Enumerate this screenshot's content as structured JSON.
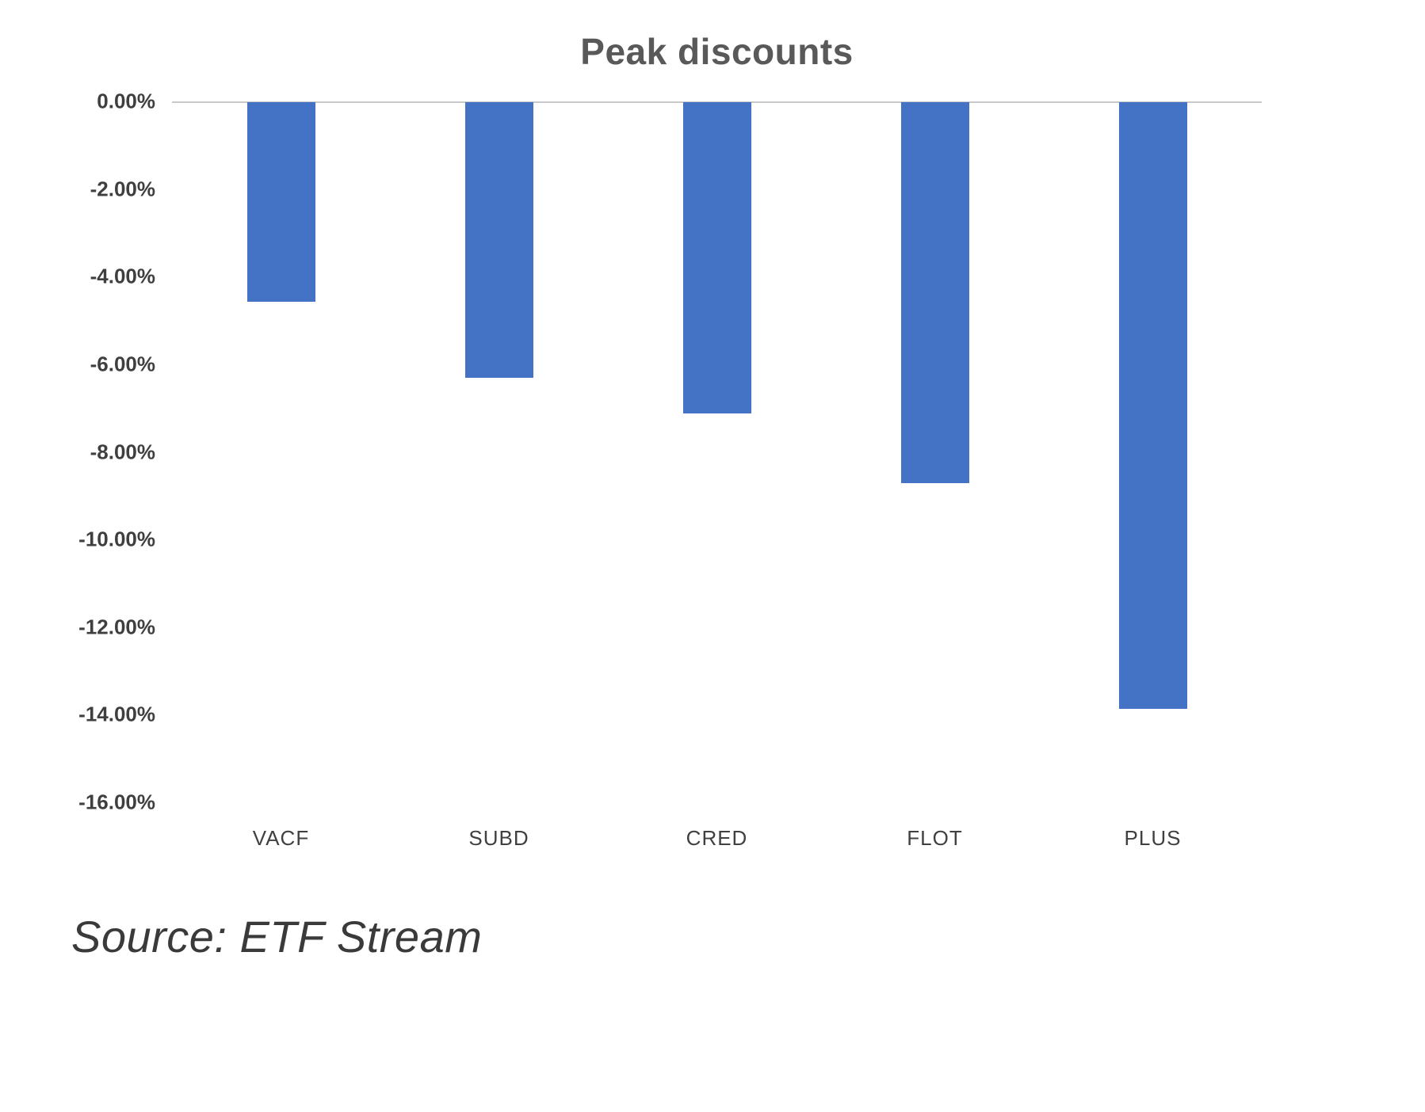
{
  "chart_data": {
    "type": "bar",
    "title": "Peak discounts",
    "categories": [
      "VACF",
      "SUBD",
      "CRED",
      "FLOT",
      "PLUS"
    ],
    "values": [
      -4.55,
      -6.3,
      -7.1,
      -8.7,
      -13.85
    ],
    "value_unit": "percent",
    "ylim": [
      -16,
      0
    ],
    "y_ticks": [
      "0.00%",
      "-2.00%",
      "-4.00%",
      "-6.00%",
      "-8.00%",
      "-10.00%",
      "-12.00%",
      "-14.00%",
      "-16.00%"
    ],
    "bar_color": "#4472C4",
    "axis_line_color": "#C9C9C9",
    "grid": false,
    "legend": "none",
    "xlabel": "",
    "ylabel": ""
  },
  "source": "Source: ETF Stream"
}
